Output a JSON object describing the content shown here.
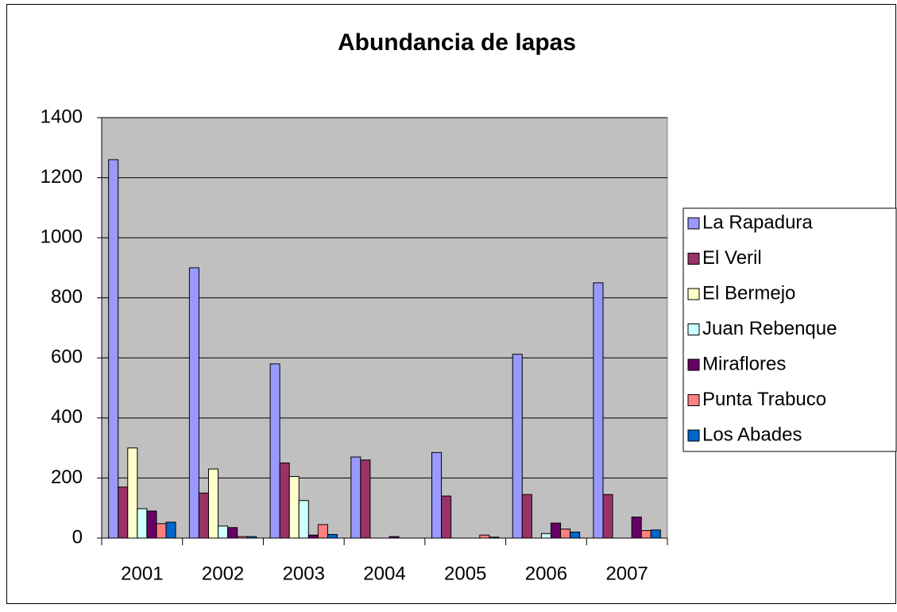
{
  "chart_data": {
    "type": "bar",
    "title": "Abundancia de lapas",
    "categories": [
      "2001",
      "2002",
      "2003",
      "2004",
      "2005",
      "2006",
      "2007"
    ],
    "series": [
      {
        "name": "La Rapadura",
        "color": "#9999ff",
        "values": [
          1260,
          900,
          580,
          270,
          285,
          612,
          850
        ]
      },
      {
        "name": "El Veril",
        "color": "#993366",
        "values": [
          170,
          150,
          250,
          260,
          140,
          145,
          145
        ]
      },
      {
        "name": "El Bermejo",
        "color": "#ffffcc",
        "values": [
          300,
          230,
          205,
          0,
          0,
          0,
          0
        ]
      },
      {
        "name": "Juan Rebenque",
        "color": "#ccffff",
        "values": [
          98,
          40,
          125,
          0,
          0,
          15,
          0
        ]
      },
      {
        "name": "Miraflores",
        "color": "#660066",
        "values": [
          90,
          35,
          10,
          5,
          0,
          50,
          70
        ]
      },
      {
        "name": "Punta Trabuco",
        "color": "#ff8080",
        "values": [
          48,
          5,
          45,
          0,
          10,
          30,
          25
        ]
      },
      {
        "name": "Los Abades",
        "color": "#0066cc",
        "values": [
          53,
          5,
          12,
          0,
          3,
          20,
          27
        ]
      }
    ],
    "ylim": [
      0,
      1400
    ],
    "yticks": [
      0,
      200,
      400,
      600,
      800,
      1000,
      1200,
      1400
    ],
    "grid": true,
    "legend": "right",
    "plot_background": "#c0c0c0"
  }
}
